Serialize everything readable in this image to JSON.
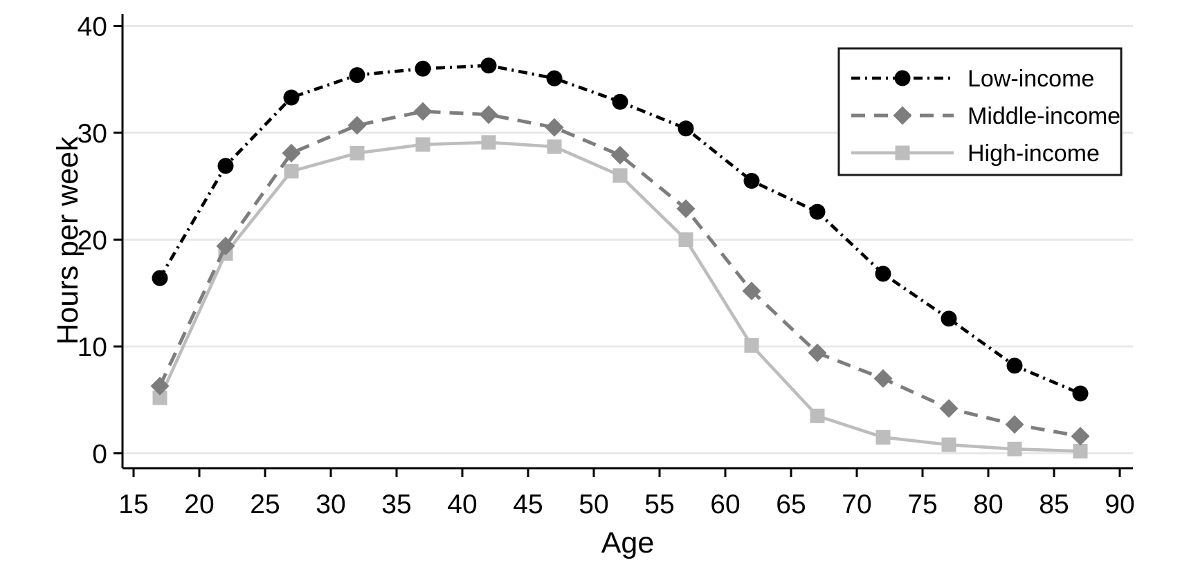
{
  "chart_data": {
    "type": "line",
    "title": "",
    "xlabel": "Age",
    "ylabel": "Hours per week",
    "x": [
      17,
      22,
      27,
      32,
      37,
      42,
      47,
      52,
      57,
      62,
      67,
      72,
      77,
      82,
      87
    ],
    "series": [
      {
        "name": "Low-income",
        "marker": "circle",
        "line_style": "dash-dot",
        "color": "#000000",
        "values": [
          16.4,
          26.9,
          33.3,
          35.4,
          36.0,
          36.3,
          35.1,
          32.9,
          30.4,
          25.5,
          22.6,
          16.8,
          12.6,
          8.2,
          5.6
        ]
      },
      {
        "name": "Middle-income",
        "marker": "diamond",
        "line_style": "dashed",
        "color": "#7d7d7d",
        "values": [
          6.3,
          19.4,
          28.1,
          30.7,
          32.0,
          31.7,
          30.5,
          27.9,
          22.9,
          15.2,
          9.4,
          7.0,
          4.2,
          2.7,
          1.6
        ]
      },
      {
        "name": "High-income",
        "marker": "square",
        "line_style": "solid",
        "color": "#bdbdbd",
        "values": [
          5.2,
          18.7,
          26.4,
          28.1,
          28.9,
          29.1,
          28.7,
          26.0,
          20.0,
          10.1,
          3.5,
          1.5,
          0.8,
          0.4,
          0.2
        ]
      }
    ],
    "xlim": [
      15,
      90
    ],
    "ylim": [
      0,
      40
    ],
    "x_ticks": [
      15,
      20,
      25,
      30,
      35,
      40,
      45,
      50,
      55,
      60,
      65,
      70,
      75,
      80,
      85,
      90
    ],
    "y_ticks": [
      0,
      10,
      20,
      30,
      40
    ],
    "grid": "horizontal",
    "legend_position": "top-right-inside"
  },
  "colors": {
    "background": "#ffffff",
    "gridline": "#e8e8e8",
    "axis": "#000000",
    "legend_border": "#1a1a1a",
    "legend_background": "#ffffff"
  }
}
